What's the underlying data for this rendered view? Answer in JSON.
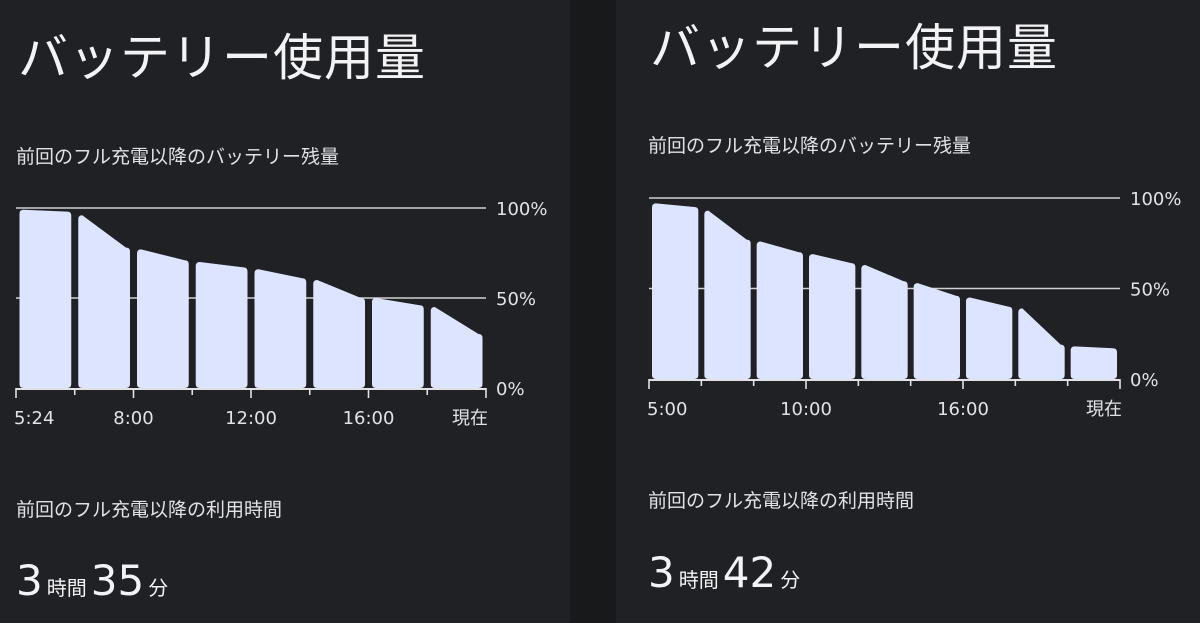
{
  "screens": [
    {
      "title": "バッテリー使用量",
      "chart_label": "前回のフル充電以降のバッテリー残量",
      "usage_label": "前回のフル充電以降の利用時間",
      "usage": {
        "hours": "3",
        "hours_unit": "時間",
        "minutes": "35",
        "minutes_unit": "分"
      }
    },
    {
      "title": "バッテリー使用量",
      "chart_label": "前回のフル充電以降のバッテリー残量",
      "usage_label": "前回のフル充電以降の利用時間",
      "usage": {
        "hours": "3",
        "hours_unit": "時間",
        "minutes": "42",
        "minutes_unit": "分"
      }
    }
  ],
  "chart_data": [
    {
      "type": "area",
      "y_ticks": [
        "100%",
        "50%",
        "0%"
      ],
      "ylim": [
        0,
        100
      ],
      "x_ticks": [
        "5:24",
        "8:00",
        "12:00",
        "16:00",
        "現在"
      ],
      "segments": [
        {
          "start": 99,
          "end": 98
        },
        {
          "start": 96,
          "end": 78
        },
        {
          "start": 77,
          "end": 71
        },
        {
          "start": 70,
          "end": 67
        },
        {
          "start": 66,
          "end": 61
        },
        {
          "start": 60,
          "end": 50
        },
        {
          "start": 50,
          "end": 46
        },
        {
          "start": 45,
          "end": 30
        }
      ],
      "bar_color": "#dde4ff",
      "grid": true
    },
    {
      "type": "area",
      "y_ticks": [
        "100%",
        "50%",
        "0%"
      ],
      "ylim": [
        0,
        100
      ],
      "x_ticks": [
        "5:00",
        "10:00",
        "16:00",
        "現在"
      ],
      "segments": [
        {
          "start": 97,
          "end": 95
        },
        {
          "start": 93,
          "end": 77
        },
        {
          "start": 76,
          "end": 70
        },
        {
          "start": 69,
          "end": 64
        },
        {
          "start": 63,
          "end": 54
        },
        {
          "start": 53,
          "end": 46
        },
        {
          "start": 45,
          "end": 40
        },
        {
          "start": 39,
          "end": 19
        },
        {
          "start": 18,
          "end": 17
        }
      ],
      "bar_color": "#dde4ff",
      "grid": true
    }
  ]
}
